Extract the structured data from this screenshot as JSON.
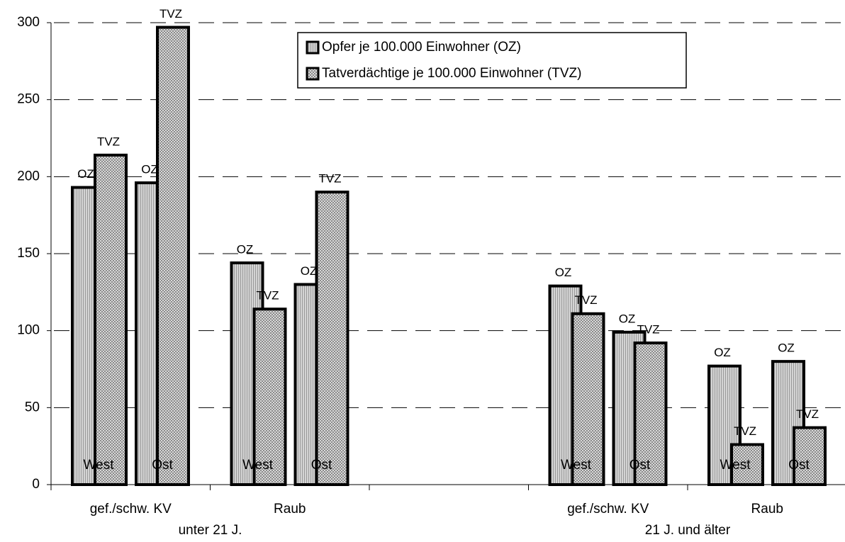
{
  "chart_data": {
    "type": "bar",
    "categories": [
      "gef./schw. KV",
      "Raub",
      null,
      "gef./schw. KV",
      "Raub"
    ],
    "groups": [
      {
        "label": "unter 21 J.",
        "categories": [
          0,
          1
        ]
      },
      {
        "label": "21 J. und älter",
        "categories": [
          3,
          4
        ]
      }
    ],
    "subgroups": [
      "West",
      "Ost"
    ],
    "series": [
      {
        "name": "Opfer je 100.000 Einwohner (OZ)",
        "label": "OZ",
        "color": "#c8c8c8",
        "pattern": "vertical",
        "values": [
          [
            193,
            196
          ],
          [
            144,
            130
          ],
          null,
          [
            129,
            99
          ],
          [
            77,
            80
          ]
        ]
      },
      {
        "name": "Tatverdächtige je 100.000 Einwohner (TVZ)",
        "label": "TVZ",
        "color": "#e4e4e4",
        "pattern": "cross",
        "values": [
          [
            214,
            297
          ],
          [
            114,
            190
          ],
          null,
          [
            111,
            92
          ],
          [
            26,
            37
          ]
        ]
      }
    ],
    "ylim": [
      0,
      300
    ],
    "yticks": [
      0,
      50,
      100,
      150,
      200,
      250,
      300
    ],
    "grid": true,
    "legend": "top"
  }
}
